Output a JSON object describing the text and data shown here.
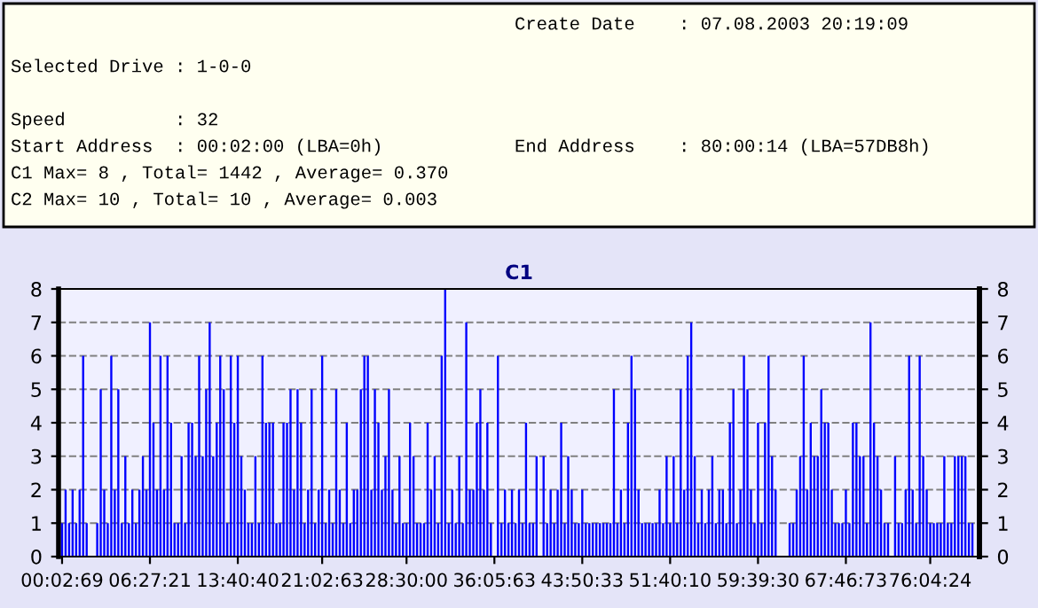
{
  "chart_data": {
    "type": "bar",
    "title": "C1",
    "categories": [
      "00:02:69",
      null,
      null,
      null,
      null,
      null,
      null,
      null,
      null,
      null,
      null,
      null,
      null,
      null,
      null,
      null,
      null,
      null,
      null,
      null,
      null,
      null,
      null,
      null,
      null,
      "06:27:21",
      null,
      null,
      null,
      null,
      null,
      null,
      null,
      null,
      null,
      null,
      null,
      null,
      null,
      null,
      null,
      null,
      null,
      null,
      null,
      null,
      null,
      null,
      null,
      null,
      "13:40:40",
      null,
      null,
      null,
      null,
      null,
      null,
      null,
      null,
      null,
      null,
      null,
      null,
      null,
      null,
      null,
      null,
      null,
      null,
      null,
      null,
      null,
      null,
      null,
      "21:02:63",
      null,
      null,
      null,
      null,
      null,
      null,
      null,
      null,
      null,
      null,
      null,
      null,
      null,
      null,
      null,
      null,
      null,
      null,
      null,
      null,
      null,
      null,
      null,
      "28:30:00",
      null,
      null,
      null,
      null,
      null,
      null,
      null,
      null,
      null,
      null,
      null,
      null,
      null,
      null,
      null,
      null,
      null,
      null,
      null,
      null,
      null,
      null,
      null,
      null,
      "36:05:63",
      null,
      null,
      null,
      null,
      null,
      null,
      null,
      null,
      null,
      null,
      null,
      null,
      null,
      null,
      null,
      null,
      null,
      null,
      null,
      null,
      null,
      null,
      null,
      null,
      "43:50:33",
      null,
      null,
      null,
      null,
      null,
      null,
      null,
      null,
      null,
      null,
      null,
      null,
      null,
      null,
      null,
      null,
      null,
      null,
      null,
      null,
      null,
      null,
      null,
      null,
      "51:40:10",
      null,
      null,
      null,
      null,
      null,
      null,
      null,
      null,
      null,
      null,
      null,
      null,
      null,
      null,
      null,
      null,
      null,
      null,
      null,
      null,
      null,
      null,
      null,
      null,
      "59:39:30",
      null,
      null,
      null,
      null,
      null,
      null,
      null,
      null,
      null,
      null,
      null,
      null,
      null,
      null,
      null,
      null,
      null,
      null,
      null,
      null,
      null,
      null,
      null,
      null,
      "67:46:73",
      null,
      null,
      null,
      null,
      null,
      null,
      null,
      null,
      null,
      null,
      null,
      null,
      null,
      null,
      null,
      null,
      null,
      null,
      null,
      null,
      null,
      null,
      null,
      "76:04:24",
      null,
      null,
      null,
      null,
      null,
      null,
      null,
      null,
      null,
      null,
      null,
      null
    ],
    "values": [
      1,
      2,
      1,
      2,
      1,
      2,
      6,
      1,
      0,
      0,
      1,
      5,
      2,
      1,
      6,
      2,
      5,
      1,
      3,
      1,
      2,
      1,
      2,
      3,
      2,
      7,
      4,
      2,
      6,
      2,
      6,
      4,
      1,
      1,
      3,
      1,
      4,
      4,
      3,
      6,
      3,
      5,
      7,
      3,
      4,
      6,
      5,
      1,
      6,
      4,
      6,
      3,
      2,
      1,
      1,
      3,
      1,
      6,
      4,
      4,
      4,
      1,
      1,
      4,
      4,
      5,
      2,
      5,
      4,
      1,
      2,
      5,
      1,
      2,
      6,
      1,
      2,
      1,
      5,
      2,
      1,
      4,
      1,
      2,
      2,
      5,
      6,
      6,
      2,
      5,
      4,
      2,
      3,
      5,
      2,
      1,
      3,
      1,
      1,
      4,
      3,
      1,
      1,
      1,
      4,
      2,
      3,
      1,
      6,
      8,
      1,
      2,
      1,
      3,
      1,
      7,
      2,
      2,
      4,
      5,
      2,
      4,
      1,
      0,
      6,
      1,
      2,
      1,
      2,
      1,
      2,
      1,
      4,
      1,
      1,
      3,
      0,
      3,
      1,
      2,
      1,
      2,
      4,
      1,
      3,
      2,
      1,
      1,
      2,
      1,
      1,
      1,
      1,
      1,
      1,
      1,
      1,
      5,
      1,
      2,
      1,
      4,
      6,
      5,
      2,
      1,
      1,
      1,
      1,
      1,
      2,
      1,
      3,
      1,
      3,
      1,
      5,
      2,
      6,
      7,
      3,
      1,
      2,
      1,
      2,
      3,
      1,
      2,
      2,
      1,
      4,
      5,
      1,
      2,
      6,
      5,
      2,
      1,
      4,
      1,
      4,
      6,
      3,
      2,
      0,
      0,
      0,
      1,
      1,
      2,
      3,
      6,
      2,
      4,
      3,
      3,
      5,
      4,
      4,
      2,
      1,
      1,
      1,
      2,
      1,
      4,
      4,
      3,
      3,
      1,
      7,
      4,
      3,
      2,
      1,
      1,
      0,
      3,
      1,
      1,
      2,
      6,
      2,
      1,
      6,
      3,
      2,
      1,
      1,
      1,
      1,
      3,
      1,
      1,
      3,
      3,
      3,
      3,
      1,
      1
    ],
    "color": "#0000ff",
    "ylim": [
      0,
      8
    ],
    "yticks": [
      0,
      1,
      2,
      3,
      4,
      5,
      6,
      7,
      8
    ],
    "y2lim": [
      0,
      8
    ],
    "y2ticks": [
      0,
      1,
      2,
      3,
      4,
      5,
      6,
      7,
      8
    ],
    "grid": "y",
    "annotations": [
      "Create Date    : 07.08.2003 20:19:09",
      "Selected Drive : 1-0-0",
      "Speed          : 32",
      "Start Address  : 00:02:00 (LBA=0h)",
      "End Address    : 80:00:14 (LBA=57DB8h)",
      "C1 Max= 8 , Total= 1442 , Average= 0.370",
      "C2 Max= 10 , Total= 10 , Average= 0.003"
    ]
  }
}
